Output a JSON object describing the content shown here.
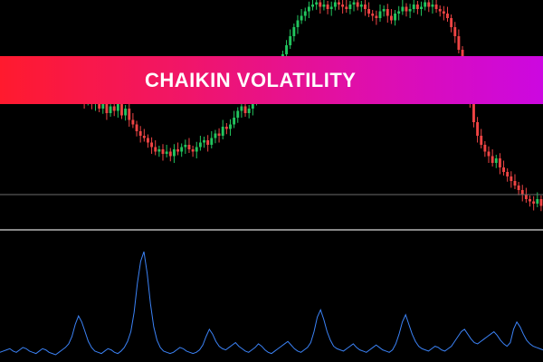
{
  "banner": {
    "title": "CHAIKIN VOLATILITY"
  },
  "colors": {
    "background": "#000000",
    "bull_candle": "#22c55e",
    "bear_candle": "#ef4444",
    "level_line": "#6b6b6b",
    "separator": "#d9d9d9",
    "indicator_line": "#3b82f6"
  },
  "chart_data": [
    {
      "type": "candlestick",
      "title": "",
      "xlabel": "",
      "ylabel": "",
      "ylim": [
        0,
        100
      ],
      "candles_close": [
        64,
        68,
        66,
        70,
        67,
        69,
        65,
        66,
        68,
        64,
        63,
        66,
        62,
        65,
        61,
        64,
        60,
        63,
        58,
        60,
        57,
        59,
        55,
        58,
        54,
        56,
        52,
        55,
        50,
        53,
        51,
        54,
        49,
        52,
        47,
        45,
        42,
        40,
        39,
        37,
        35,
        33,
        34,
        32,
        33,
        31,
        34,
        33,
        35,
        36,
        34,
        33,
        35,
        37,
        38,
        36,
        39,
        41,
        40,
        44,
        43,
        45,
        48,
        51,
        53,
        50,
        52,
        55,
        57,
        60,
        58,
        62,
        66,
        70,
        72,
        76,
        80,
        84,
        88,
        91,
        93,
        95,
        97,
        98,
        99,
        97,
        98,
        96,
        97,
        99,
        98,
        97,
        96,
        98,
        99,
        97,
        98,
        96,
        94,
        93,
        92,
        95,
        96,
        93,
        91,
        94,
        95,
        97,
        95,
        96,
        98,
        96,
        97,
        99,
        97,
        98,
        96,
        95,
        94,
        92,
        88,
        84,
        78,
        70,
        62,
        54,
        46,
        40,
        36,
        33,
        31,
        28,
        30,
        26,
        24,
        22,
        20,
        18,
        16,
        14,
        12,
        11,
        10,
        12,
        9
      ],
      "levels": [
        {
          "name": "level",
          "value": 14
        }
      ]
    },
    {
      "type": "line",
      "title": "",
      "series": [
        {
          "name": "",
          "values": [
            5,
            6,
            7,
            8,
            6,
            5,
            7,
            9,
            8,
            6,
            5,
            4,
            6,
            8,
            7,
            5,
            4,
            3,
            5,
            7,
            9,
            12,
            18,
            28,
            35,
            30,
            22,
            14,
            9,
            6,
            5,
            4,
            6,
            8,
            7,
            5,
            4,
            6,
            9,
            14,
            22,
            38,
            62,
            80,
            88,
            70,
            45,
            26,
            15,
            9,
            6,
            5,
            4,
            5,
            7,
            9,
            8,
            6,
            5,
            4,
            5,
            7,
            11,
            18,
            24,
            20,
            14,
            10,
            8,
            7,
            9,
            11,
            13,
            10,
            8,
            6,
            5,
            7,
            9,
            12,
            10,
            7,
            5,
            4,
            6,
            8,
            10,
            12,
            14,
            11,
            8,
            6,
            5,
            7,
            9,
            13,
            22,
            34,
            40,
            32,
            22,
            15,
            10,
            8,
            7,
            6,
            8,
            10,
            12,
            9,
            7,
            6,
            5,
            7,
            9,
            11,
            9,
            7,
            6,
            5,
            7,
            12,
            20,
            30,
            36,
            28,
            20,
            14,
            10,
            8,
            7,
            6,
            8,
            10,
            9,
            7,
            6,
            8,
            10,
            14,
            18,
            22,
            24,
            20,
            16,
            13,
            12,
            14,
            16,
            18,
            20,
            22,
            19,
            15,
            12,
            10,
            13,
            24,
            30,
            26,
            20,
            15,
            12,
            10,
            9,
            8,
            7
          ]
        }
      ],
      "ylim": [
        0,
        100
      ]
    }
  ]
}
